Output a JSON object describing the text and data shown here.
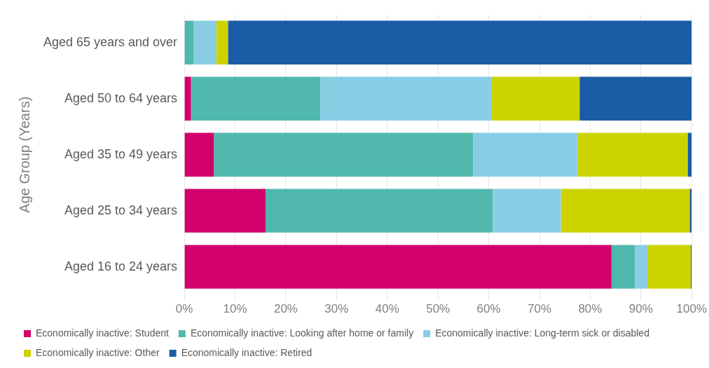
{
  "chart_data": {
    "type": "bar",
    "orientation": "horizontal",
    "stacked": true,
    "ylabel": "Age Group (Years)",
    "categories": [
      "Aged 65 years and over",
      "Aged 50 to 64 years",
      "Aged 35 to 49 years",
      "Aged 25 to 34 years",
      "Aged 16 to 24 years"
    ],
    "series": [
      {
        "name": "Economically inactive: Student",
        "color": "#d1006c",
        "values": [
          0,
          1.3,
          5.8,
          16.0,
          84.2
        ]
      },
      {
        "name": "Economically inactive: Looking after home or family",
        "color": "#50b8ac",
        "values": [
          1.8,
          25.5,
          51.1,
          44.8,
          4.6
        ]
      },
      {
        "name": "Economically inactive: Long-term sick or disabled",
        "color": "#88cde4",
        "values": [
          4.5,
          33.8,
          20.6,
          13.4,
          2.6
        ]
      },
      {
        "name": "Economically inactive: Other",
        "color": "#cdd300",
        "values": [
          2.3,
          17.3,
          21.7,
          25.4,
          8.4
        ]
      },
      {
        "name": "Economically inactive: Retired",
        "color": "#1b5ca6",
        "values": [
          91.4,
          22.1,
          0.8,
          0.4,
          0.2
        ]
      }
    ],
    "xlim": [
      0,
      100
    ],
    "xticks": [
      {
        "value": 0,
        "label": "0%"
      },
      {
        "value": 10,
        "label": "10%"
      },
      {
        "value": 20,
        "label": "20%"
      },
      {
        "value": 30,
        "label": "30%"
      },
      {
        "value": 40,
        "label": "40%"
      },
      {
        "value": 50,
        "label": "50%"
      },
      {
        "value": 60,
        "label": "60%"
      },
      {
        "value": 70,
        "label": "70%"
      },
      {
        "value": 80,
        "label": "80%"
      },
      {
        "value": 90,
        "label": "90%"
      },
      {
        "value": 100,
        "label": "100%"
      }
    ],
    "grid": "x",
    "legend": "bottom"
  }
}
